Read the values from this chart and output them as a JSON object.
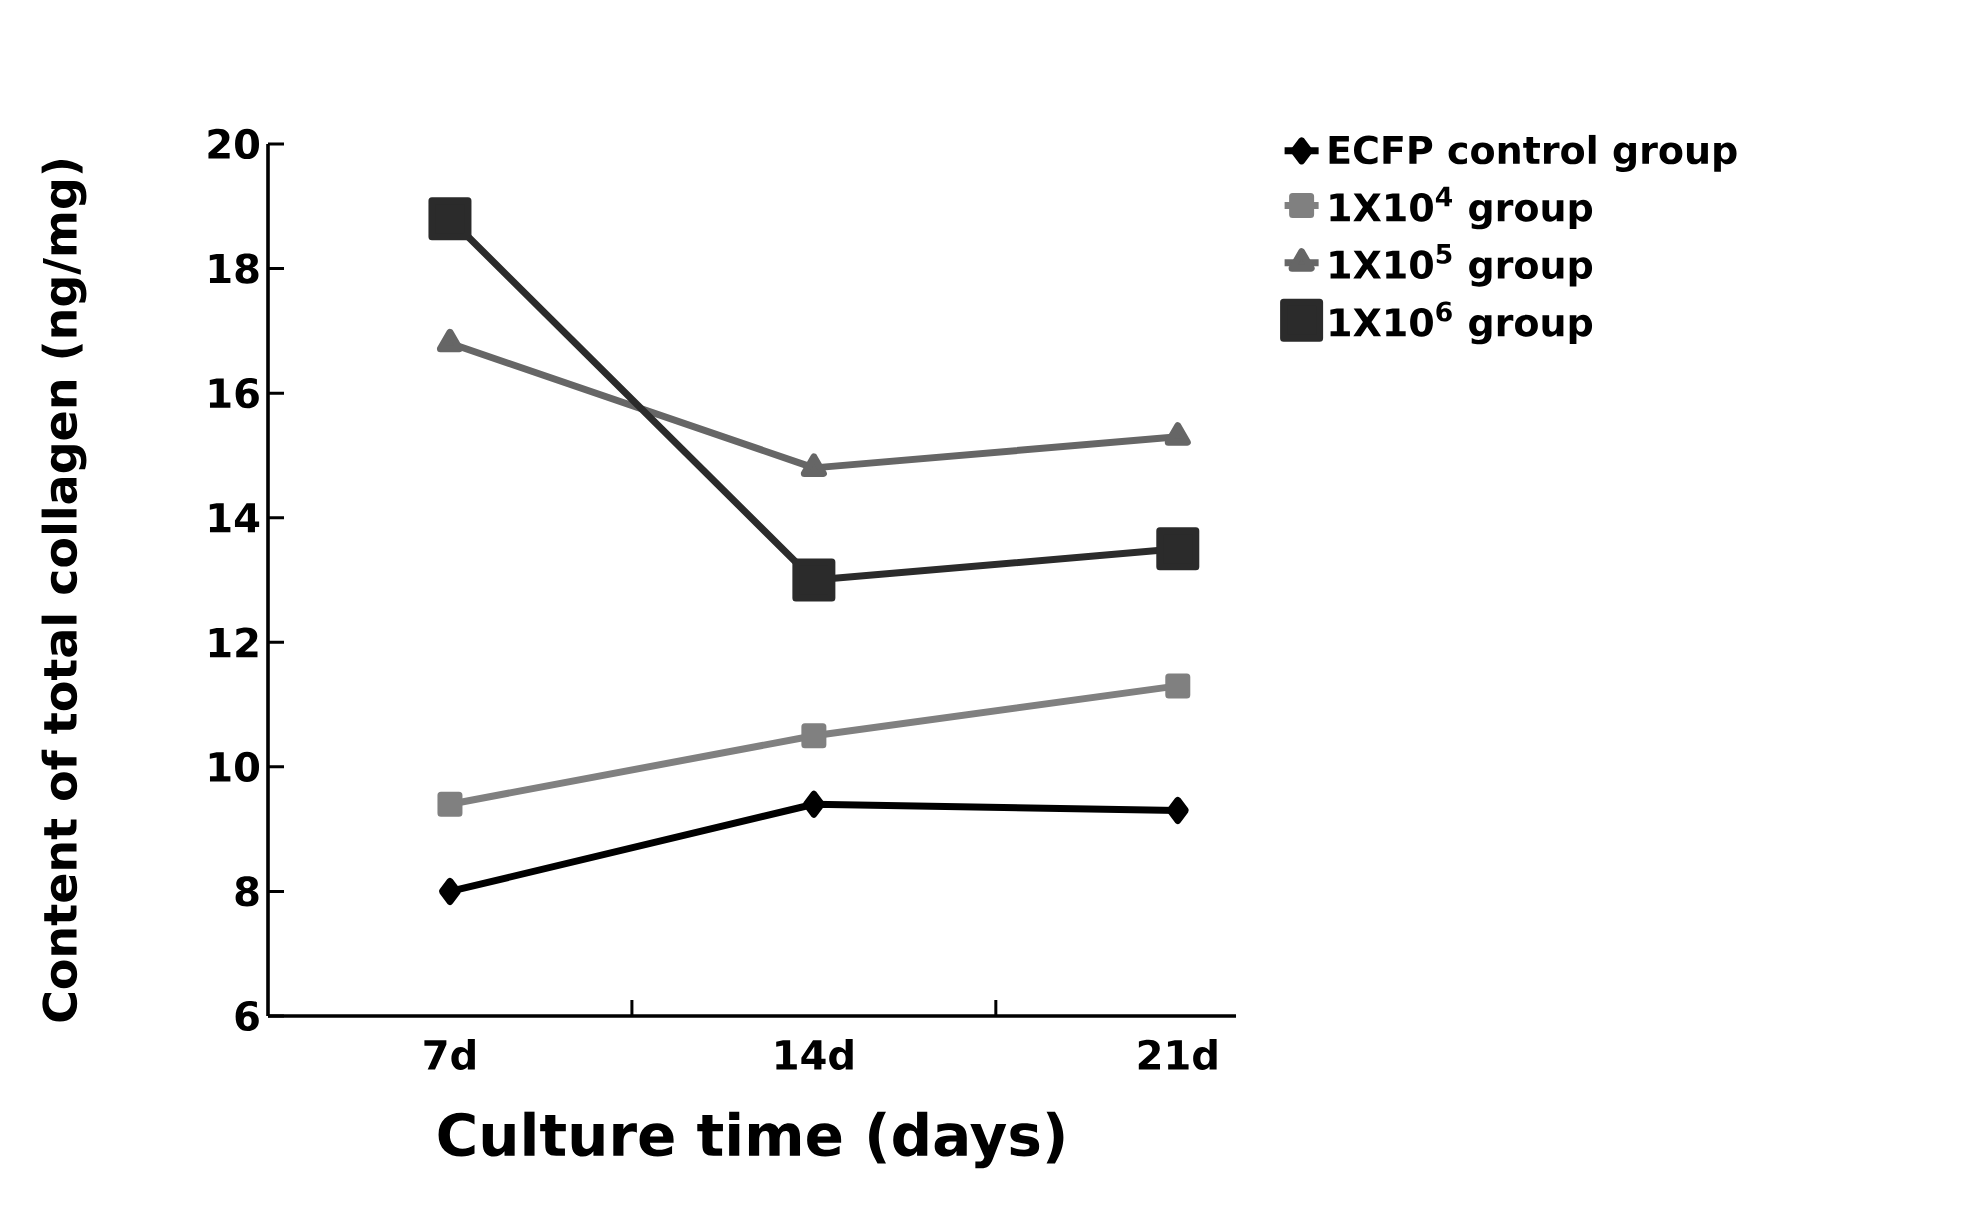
{
  "chart_data": {
    "type": "line",
    "xlabel": "Culture time (days)",
    "ylabel": "Content of total collagen (ng/mg)",
    "categories": [
      "7d",
      "14d",
      "21d"
    ],
    "ylim": [
      6,
      20
    ],
    "yticks": [
      6,
      8,
      10,
      12,
      14,
      16,
      18,
      20
    ],
    "grid": false,
    "legend": "top right outside",
    "series": [
      {
        "name": "ECFP control group",
        "color": "#000000",
        "marker": "diamond",
        "values": [
          8.0,
          9.4,
          9.3
        ]
      },
      {
        "name": "1X10$^{4}$ group",
        "color": "#808080",
        "marker": "square",
        "values": [
          9.4,
          10.5,
          11.3
        ]
      },
      {
        "name": "1X10$^{5}$ group",
        "color": "#666666",
        "marker": "triangle",
        "values": [
          16.8,
          14.8,
          15.3
        ]
      },
      {
        "name": "1X10$^{6}$ group",
        "color": "#2b2b2b",
        "marker": "square",
        "values": [
          18.8,
          13.0,
          13.5
        ]
      }
    ]
  }
}
